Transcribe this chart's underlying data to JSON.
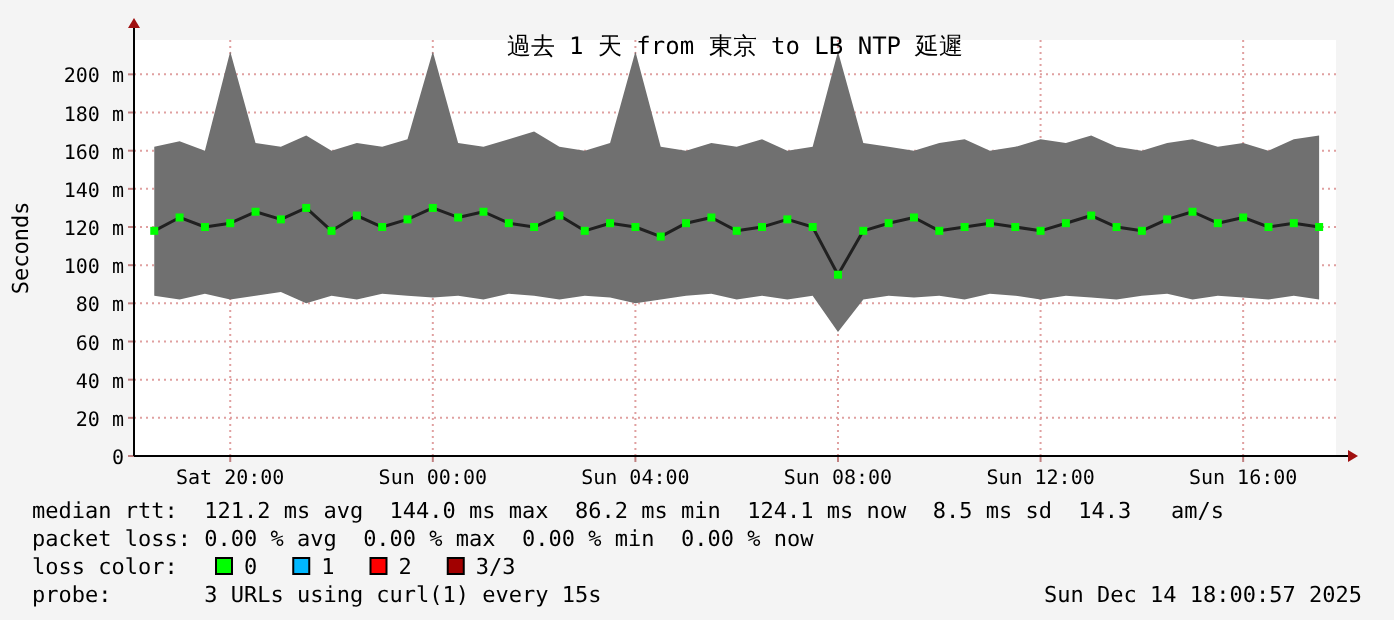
{
  "chart_data": {
    "type": "line",
    "title": "過去 1 天 from 東京 to LB NTP 延遲",
    "ylabel": "Seconds",
    "x": [
      "2025-12-13T18:30",
      "2025-12-13T19:00",
      "2025-12-13T19:30",
      "2025-12-13T20:00",
      "2025-12-13T20:30",
      "2025-12-13T21:00",
      "2025-12-13T21:30",
      "2025-12-13T22:00",
      "2025-12-13T22:30",
      "2025-12-13T23:00",
      "2025-12-13T23:30",
      "2025-12-14T00:00",
      "2025-12-14T00:30",
      "2025-12-14T01:00",
      "2025-12-14T01:30",
      "2025-12-14T02:00",
      "2025-12-14T02:30",
      "2025-12-14T03:00",
      "2025-12-14T03:30",
      "2025-12-14T04:00",
      "2025-12-14T04:30",
      "2025-12-14T05:00",
      "2025-12-14T05:30",
      "2025-12-14T06:00",
      "2025-12-14T06:30",
      "2025-12-14T07:00",
      "2025-12-14T07:30",
      "2025-12-14T08:00",
      "2025-12-14T08:30",
      "2025-12-14T09:00",
      "2025-12-14T09:30",
      "2025-12-14T10:00",
      "2025-12-14T10:30",
      "2025-12-14T11:00",
      "2025-12-14T11:30",
      "2025-12-14T12:00",
      "2025-12-14T12:30",
      "2025-12-14T13:00",
      "2025-12-14T13:30",
      "2025-12-14T14:00",
      "2025-12-14T14:30",
      "2025-12-14T15:00",
      "2025-12-14T15:30",
      "2025-12-14T16:00",
      "2025-12-14T16:30",
      "2025-12-14T17:00",
      "2025-12-14T17:30"
    ],
    "series": [
      {
        "name": "0",
        "color": "#00ff00",
        "values": [
          118,
          125,
          120,
          122,
          128,
          124,
          130,
          118,
          126,
          120,
          124,
          130,
          125,
          128,
          122,
          120,
          126,
          118,
          122,
          120,
          115,
          122,
          125,
          118,
          120,
          124,
          120,
          95,
          118,
          122,
          125,
          118,
          120,
          122,
          120,
          118,
          122,
          126,
          120,
          118,
          124,
          128,
          122,
          125,
          120,
          122,
          120
        ],
        "lower": [
          84,
          82,
          85,
          82,
          84,
          86,
          80,
          84,
          82,
          85,
          84,
          83,
          84,
          82,
          85,
          84,
          82,
          84,
          83,
          80,
          82,
          84,
          85,
          82,
          84,
          82,
          84,
          65,
          82,
          84,
          83,
          84,
          82,
          85,
          84,
          82,
          84,
          83,
          82,
          84,
          85,
          82,
          84,
          83,
          82,
          84,
          82
        ],
        "upper": [
          162,
          165,
          160,
          212,
          164,
          162,
          168,
          160,
          164,
          162,
          166,
          212,
          164,
          162,
          166,
          170,
          162,
          160,
          164,
          212,
          162,
          160,
          164,
          162,
          166,
          160,
          162,
          212,
          164,
          162,
          160,
          164,
          166,
          160,
          162,
          166,
          164,
          168,
          162,
          160,
          164,
          166,
          162,
          164,
          160,
          166,
          168
        ]
      },
      {
        "name": "1",
        "color": "#00b8ff",
        "values": [
          null,
          null,
          null,
          null,
          null,
          null,
          null,
          null,
          null,
          null,
          null,
          null,
          null,
          null,
          null,
          null,
          null,
          null,
          null,
          null,
          null,
          null,
          null,
          null,
          null,
          null,
          null,
          null,
          null,
          null,
          null,
          null,
          null,
          null,
          null,
          null,
          null,
          null,
          null,
          null,
          null,
          null,
          null,
          null,
          null,
          null,
          null
        ]
      },
      {
        "name": "2",
        "color": "#ff0000",
        "values": [
          null,
          null,
          null,
          null,
          null,
          null,
          null,
          null,
          null,
          null,
          null,
          null,
          null,
          null,
          null,
          null,
          null,
          null,
          null,
          null,
          null,
          null,
          null,
          null,
          null,
          null,
          null,
          null,
          null,
          null,
          null,
          null,
          null,
          null,
          null,
          null,
          null,
          null,
          null,
          null,
          null,
          null,
          null,
          null,
          null,
          null,
          null
        ]
      },
      {
        "name": "3/3",
        "color": "#a10000",
        "values": [
          null,
          null,
          null,
          null,
          null,
          null,
          null,
          null,
          null,
          null,
          null,
          null,
          null,
          null,
          null,
          null,
          null,
          null,
          null,
          null,
          null,
          null,
          null,
          null,
          null,
          null,
          null,
          null,
          null,
          null,
          null,
          null,
          null,
          null,
          null,
          null,
          null,
          null,
          null,
          null,
          null,
          null,
          null,
          null,
          null,
          null,
          null
        ]
      }
    ],
    "legend": "bottom",
    "legend_title": "loss color:",
    "marker": "square",
    "grid": true,
    "xlim": [
      "2025-12-13T18:06",
      "2025-12-14T17:50"
    ],
    "xticks": [
      {
        "value": "2025-12-13T20:00",
        "label": "Sat 20:00"
      },
      {
        "value": "2025-12-14T00:00",
        "label": "Sun 00:00"
      },
      {
        "value": "2025-12-14T04:00",
        "label": "Sun 04:00"
      },
      {
        "value": "2025-12-14T08:00",
        "label": "Sun 08:00"
      },
      {
        "value": "2025-12-14T12:00",
        "label": "Sun 12:00"
      },
      {
        "value": "2025-12-14T16:00",
        "label": "Sun 16:00"
      }
    ],
    "ylim": [
      0,
      218
    ],
    "yticks": [
      0,
      {
        "value": 20,
        "label": "20 m"
      },
      {
        "value": 40,
        "label": "40 m"
      },
      {
        "value": 60,
        "label": "60 m"
      },
      {
        "value": 80,
        "label": "80 m"
      },
      {
        "value": 100,
        "label": "100 m"
      },
      {
        "value": 120,
        "label": "120 m"
      },
      {
        "value": 140,
        "label": "140 m"
      },
      {
        "value": 160,
        "label": "160 m"
      },
      {
        "value": 180,
        "label": "180 m"
      },
      {
        "value": 200,
        "label": "200 m"
      }
    ],
    "annotations": [
      "median rtt:  121.2 ms avg  144.0 ms max  86.2 ms min  124.1 ms now  8.5 ms sd  14.3   am/s",
      "packet loss: 0.00 % avg  0.00 % max  0.00 % min  0.00 % now",
      "probe:       3 URLs using curl(1) every 15s",
      "Sun Dec 14 18:00:57 2025"
    ]
  }
}
